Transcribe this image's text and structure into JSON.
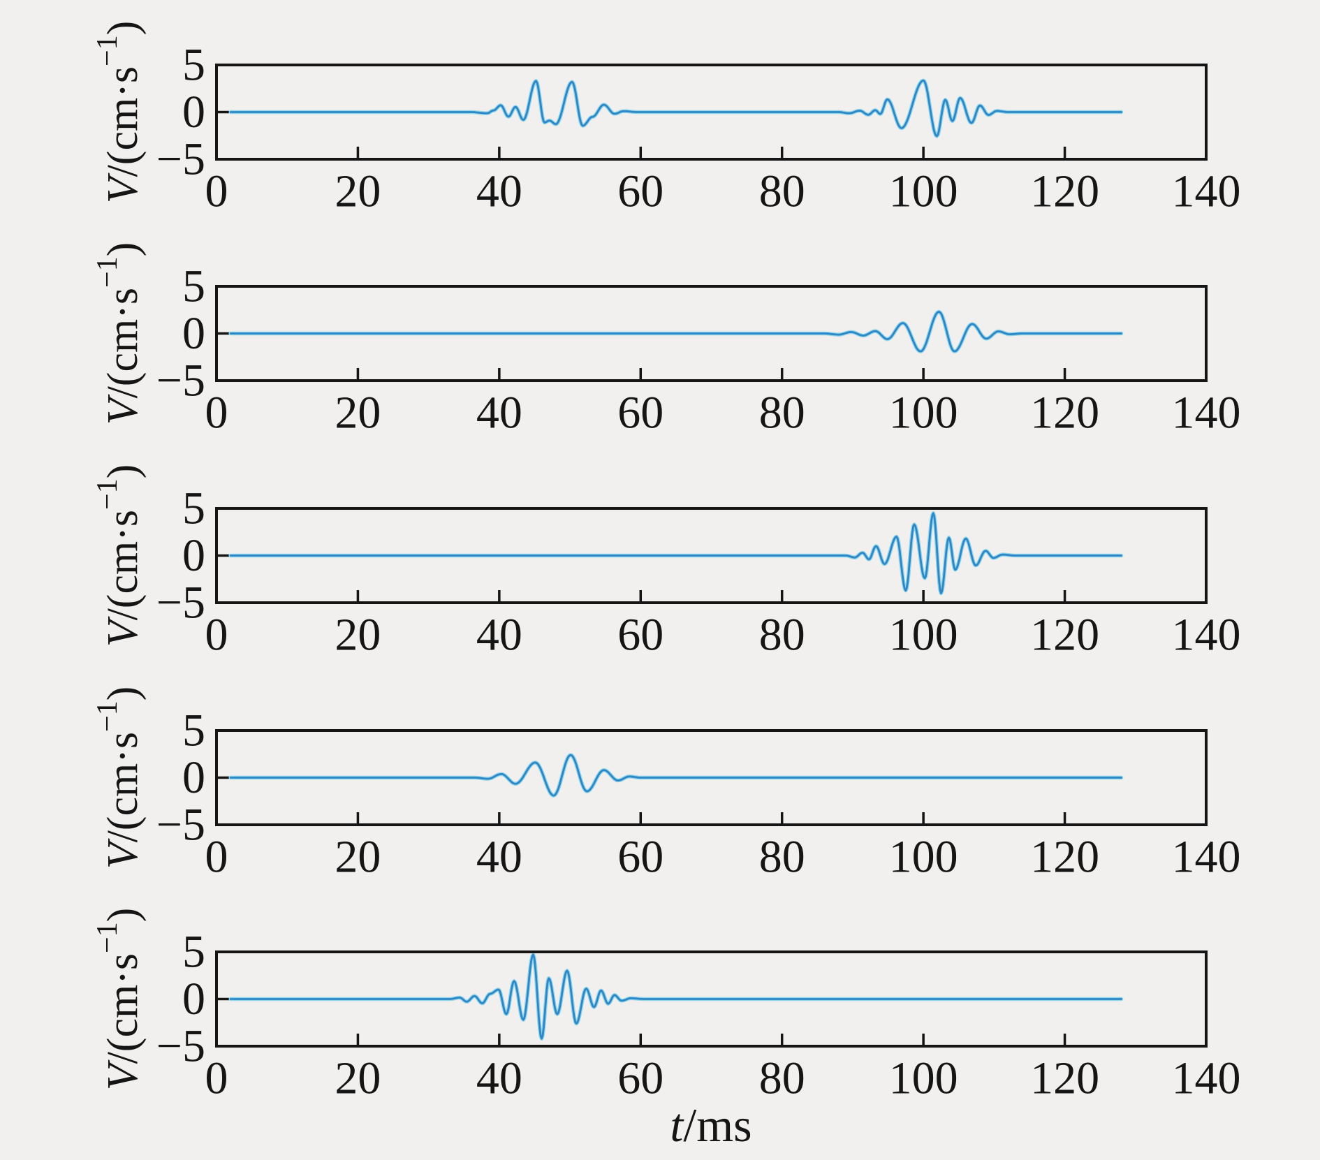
{
  "figure": {
    "background": "#f1f0ee",
    "axis_color": "#151515",
    "trace_core_color": "#2f86c6",
    "trace_halo_color": "#8fd6ea"
  },
  "chart_data": {
    "type": "line",
    "title": "",
    "xlabel": "t/ms",
    "ylabel": "V/(cm·s⁻¹)",
    "xlabel_parts": {
      "italic": "t",
      "rest": "/ms"
    },
    "ylabel_parts": {
      "italic": "V",
      "mid": "/(cm·s",
      "sup": "−1",
      "end": ")"
    },
    "xlim": [
      0,
      140
    ],
    "ylim": [
      -5,
      5
    ],
    "x_ticks": [
      0,
      20,
      40,
      60,
      80,
      100,
      120,
      140
    ],
    "y_ticks": [
      5,
      0,
      -5
    ],
    "grid": false,
    "legend": null,
    "trace_time_range_ms": [
      2,
      128
    ],
    "subplots": [
      {
        "name": "trace-1",
        "points": [
          [
            2,
            0
          ],
          [
            36,
            0
          ],
          [
            38.3,
            -0.12
          ],
          [
            39.2,
            0.18
          ],
          [
            40.2,
            0.72
          ],
          [
            41.3,
            -0.48
          ],
          [
            42.3,
            0.55
          ],
          [
            43.4,
            -0.82
          ],
          [
            45.2,
            3.3
          ],
          [
            46.4,
            -1.1
          ],
          [
            47.1,
            -0.9
          ],
          [
            48.0,
            -1.28
          ],
          [
            50.3,
            3.2
          ],
          [
            51.8,
            -1.45
          ],
          [
            53.2,
            -0.5
          ],
          [
            54.8,
            0.78
          ],
          [
            56.3,
            -0.18
          ],
          [
            57.6,
            0.1
          ],
          [
            59.5,
            0
          ],
          [
            88,
            0
          ],
          [
            89.5,
            -0.12
          ],
          [
            91,
            0.15
          ],
          [
            92.2,
            -0.28
          ],
          [
            93.2,
            0.2
          ],
          [
            93.9,
            -0.2
          ],
          [
            94.9,
            1.35
          ],
          [
            96.9,
            -1.7
          ],
          [
            100.0,
            3.35
          ],
          [
            101.9,
            -2.55
          ],
          [
            103.1,
            1.3
          ],
          [
            104.1,
            -0.95
          ],
          [
            105.2,
            1.5
          ],
          [
            106.8,
            -1.15
          ],
          [
            108.0,
            0.7
          ],
          [
            109.2,
            -0.3
          ],
          [
            110.4,
            0.12
          ],
          [
            112,
            0
          ],
          [
            128,
            0
          ]
        ]
      },
      {
        "name": "trace-2",
        "points": [
          [
            2,
            0
          ],
          [
            86,
            0
          ],
          [
            88,
            -0.12
          ],
          [
            89.8,
            0.15
          ],
          [
            91.5,
            -0.22
          ],
          [
            93.2,
            0.25
          ],
          [
            94.9,
            -0.6
          ],
          [
            97.1,
            1.1
          ],
          [
            99.6,
            -1.9
          ],
          [
            102.2,
            2.3
          ],
          [
            104.4,
            -1.9
          ],
          [
            106.9,
            1.0
          ],
          [
            108.9,
            -0.55
          ],
          [
            110.6,
            0.22
          ],
          [
            112.2,
            -0.08
          ],
          [
            114,
            0
          ],
          [
            128,
            0
          ]
        ]
      },
      {
        "name": "trace-3",
        "points": [
          [
            2,
            0
          ],
          [
            89,
            0
          ],
          [
            90.3,
            -0.2
          ],
          [
            91.4,
            0.3
          ],
          [
            92.3,
            -0.4
          ],
          [
            93.3,
            1.0
          ],
          [
            94.5,
            -0.9
          ],
          [
            96.2,
            2.0
          ],
          [
            97.5,
            -3.7
          ],
          [
            98.7,
            3.3
          ],
          [
            100.2,
            -2.4
          ],
          [
            101.4,
            4.5
          ],
          [
            102.5,
            -4.0
          ],
          [
            103.6,
            1.9
          ],
          [
            104.5,
            -1.5
          ],
          [
            106.0,
            1.8
          ],
          [
            107.4,
            -1.05
          ],
          [
            108.8,
            0.5
          ],
          [
            109.9,
            -0.25
          ],
          [
            111.2,
            0.1
          ],
          [
            113,
            0
          ],
          [
            128,
            0
          ]
        ]
      },
      {
        "name": "trace-4",
        "points": [
          [
            2,
            0
          ],
          [
            36.5,
            0
          ],
          [
            38.4,
            -0.12
          ],
          [
            40.3,
            0.38
          ],
          [
            42.3,
            -0.65
          ],
          [
            45.1,
            1.6
          ],
          [
            47.7,
            -1.9
          ],
          [
            50.1,
            2.4
          ],
          [
            52.4,
            -1.45
          ],
          [
            54.8,
            0.8
          ],
          [
            56.8,
            -0.3
          ],
          [
            58.4,
            0.12
          ],
          [
            60,
            0
          ],
          [
            128,
            0
          ]
        ]
      },
      {
        "name": "trace-5",
        "points": [
          [
            2,
            0
          ],
          [
            33,
            0
          ],
          [
            34.4,
            0.15
          ],
          [
            35.4,
            -0.28
          ],
          [
            36.5,
            0.32
          ],
          [
            37.6,
            -0.45
          ],
          [
            38.7,
            0.55
          ],
          [
            39.9,
            1.0
          ],
          [
            41.0,
            -1.6
          ],
          [
            42.1,
            1.9
          ],
          [
            43.4,
            -2.2
          ],
          [
            44.8,
            4.7
          ],
          [
            46.0,
            -4.2
          ],
          [
            47.0,
            2.2
          ],
          [
            48.2,
            -1.6
          ],
          [
            49.6,
            3.0
          ],
          [
            50.9,
            -2.6
          ],
          [
            52.3,
            1.1
          ],
          [
            53.4,
            -0.85
          ],
          [
            54.4,
            0.9
          ],
          [
            55.4,
            -0.5
          ],
          [
            56.3,
            0.42
          ],
          [
            57.3,
            -0.18
          ],
          [
            58.6,
            0.08
          ],
          [
            60.5,
            0
          ],
          [
            128,
            0
          ]
        ]
      }
    ]
  }
}
